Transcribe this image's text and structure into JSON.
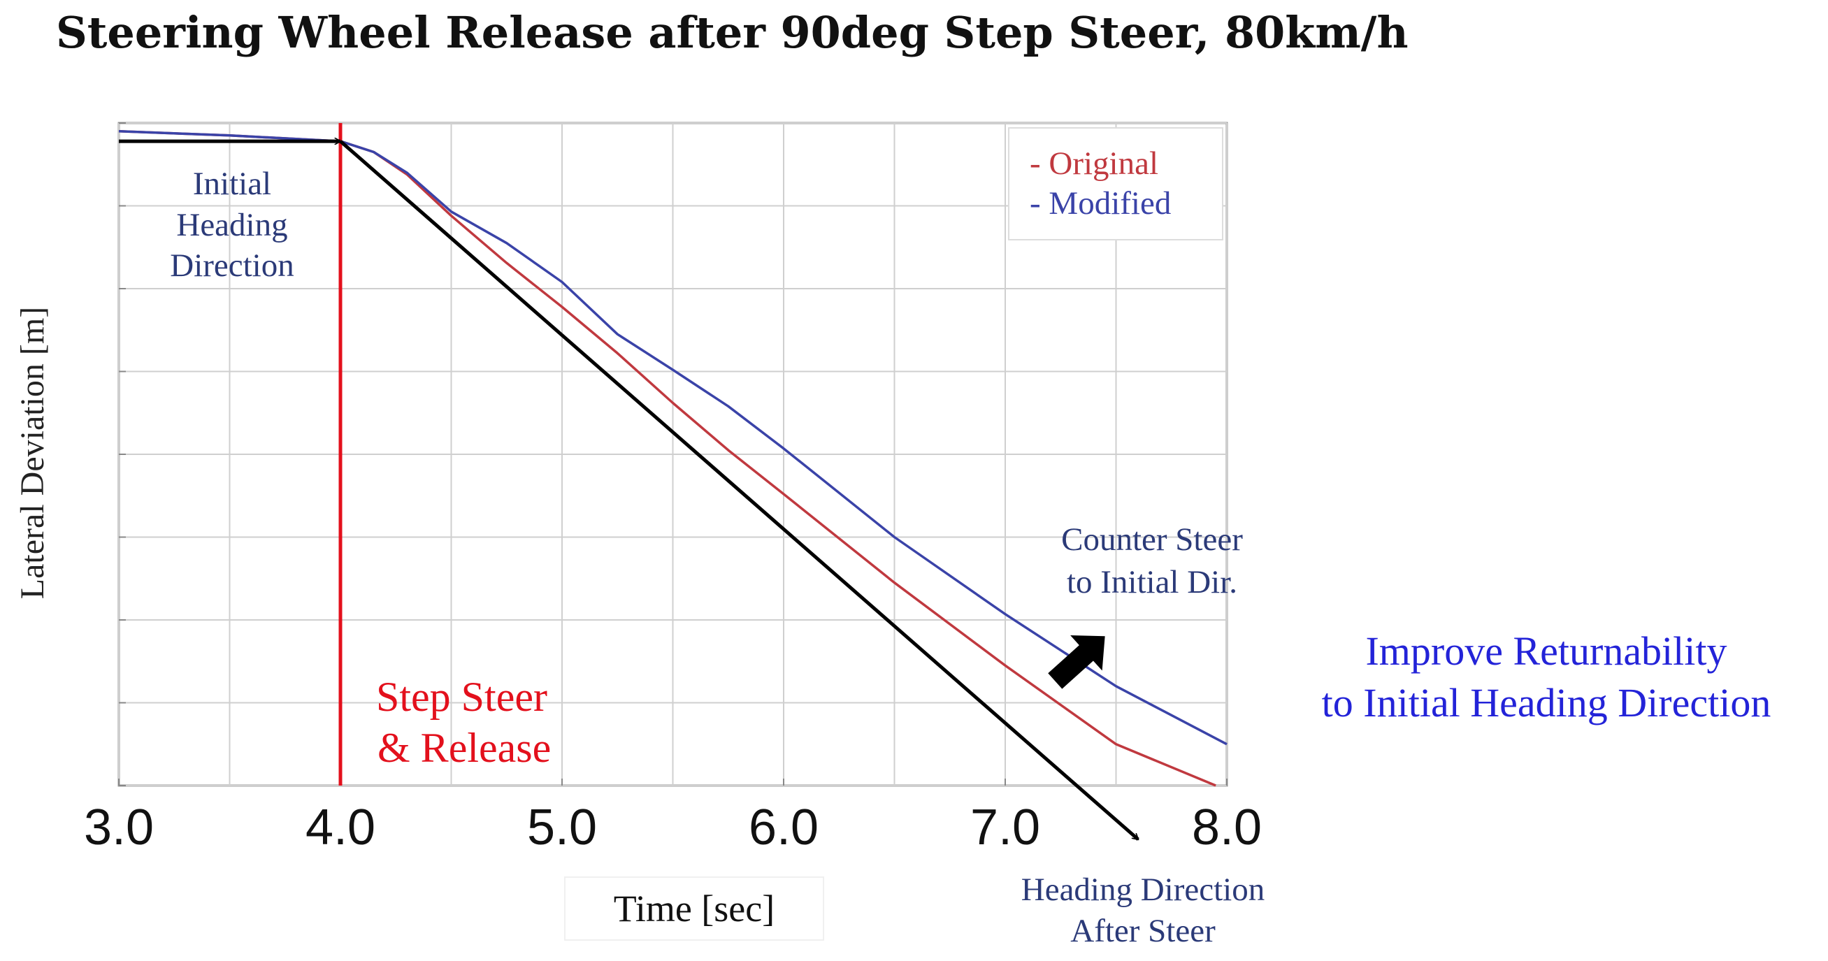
{
  "colors": {
    "original": "#c0393f",
    "modified": "#3a43a8",
    "step": "#e3101c",
    "heading_text": "#2b3a78",
    "improve": "#2323d8",
    "grid": "#cfcfcf",
    "arrow": "#000000"
  },
  "chart_data": {
    "type": "line",
    "title": "Steering Wheel Release after 90deg Step Steer, 80km/h",
    "xlabel": "Time [sec]",
    "ylabel": "Lateral Deviation [m]",
    "xlim": [
      3.0,
      8.0
    ],
    "ylim": [
      -8.0,
      0.0
    ],
    "x_ticks": [
      3.0,
      4.0,
      5.0,
      6.0,
      7.0,
      8.0
    ],
    "x_tick_labels": [
      "3.0",
      "4.0",
      "5.0",
      "6.0",
      "7.0",
      "8.0"
    ],
    "grid": true,
    "legend_position": "top-right",
    "series": [
      {
        "name": "Original",
        "legend_label": "- Original",
        "x": [
          3.0,
          3.5,
          4.0,
          4.15,
          4.3,
          4.5,
          4.75,
          5.0,
          5.25,
          5.5,
          5.75,
          6.0,
          6.5,
          7.0,
          7.5,
          7.95
        ],
        "y": [
          -0.1,
          -0.15,
          -0.22,
          -0.35,
          -0.62,
          -1.12,
          -1.69,
          -2.22,
          -2.78,
          -3.38,
          -3.95,
          -4.48,
          -5.55,
          -6.55,
          -7.5,
          -8.0
        ]
      },
      {
        "name": "Modified",
        "legend_label": "- Modified",
        "x": [
          3.0,
          3.5,
          4.0,
          4.15,
          4.3,
          4.5,
          4.75,
          5.0,
          5.25,
          5.5,
          5.75,
          6.0,
          6.5,
          7.0,
          7.5,
          8.0
        ],
        "y": [
          -0.1,
          -0.15,
          -0.22,
          -0.35,
          -0.6,
          -1.07,
          -1.45,
          -1.92,
          -2.55,
          -2.98,
          -3.42,
          -3.93,
          -5.0,
          -5.93,
          -6.8,
          -7.5
        ]
      }
    ],
    "annotations": {
      "initial_heading": [
        "Initial",
        "Heading",
        "Direction"
      ],
      "step_steer": [
        "Step Steer",
        "& Release"
      ],
      "counter_steer": [
        "Counter Steer",
        "to Initial Dir."
      ],
      "heading_after": [
        "Heading Direction",
        "After Steer"
      ],
      "improve": [
        "Improve Returnability",
        "to Initial Heading Direction"
      ],
      "step_time": 4.0,
      "initial_heading_arrow": {
        "x": [
          3.0,
          4.0
        ],
        "y": [
          -0.22,
          -0.22
        ]
      },
      "heading_after_arrow": {
        "x": [
          4.0,
          7.6
        ],
        "y": [
          -0.22,
          -8.65
        ]
      }
    }
  }
}
